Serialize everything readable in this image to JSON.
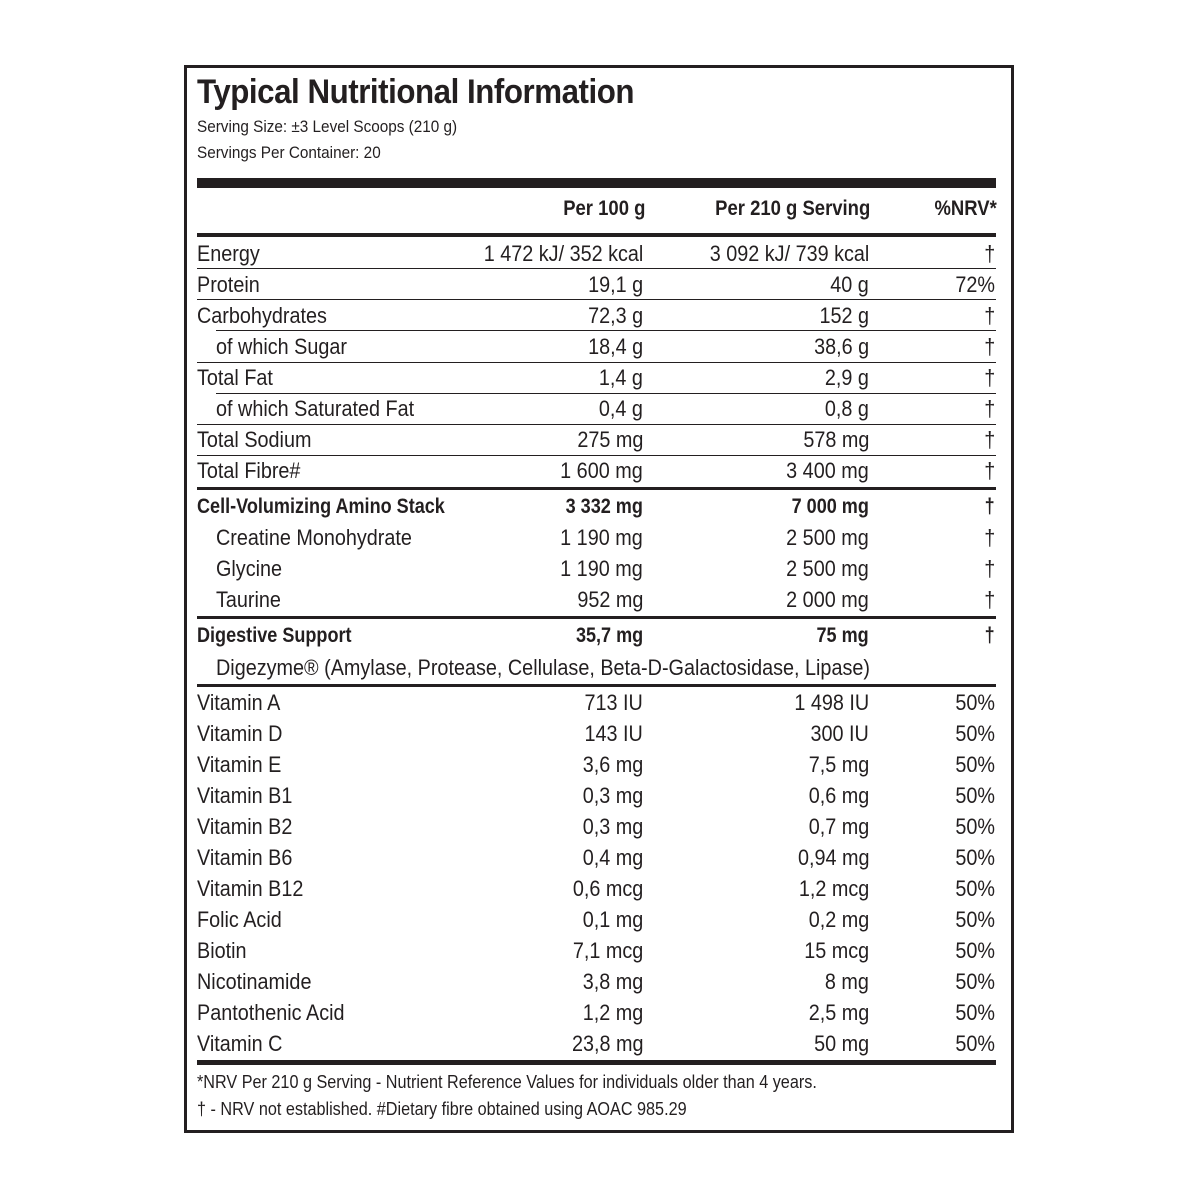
{
  "title": "Typical Nutritional Information",
  "serving_size": "Serving Size: ±3 Level Scoops (210 g)",
  "servings_per_container": "Servings Per Container: 20",
  "columns": {
    "per100": "Per 100 g",
    "serving": "Per 210 g Serving",
    "nrv": "%NRV*"
  },
  "rows": [
    {
      "name": "Energy",
      "per100": "1 472 kJ/ 352 kcal",
      "serving": "3 092 kJ/ 739 kcal",
      "nrv": "†"
    },
    {
      "name": "Protein",
      "per100": "19,1 g",
      "serving": "40 g",
      "nrv": "72%"
    },
    {
      "name": "Carbohydrates",
      "per100": "72,3 g",
      "serving": "152 g",
      "nrv": "†"
    },
    {
      "name": "of which Sugar",
      "per100": "18,4 g",
      "serving": "38,6 g",
      "nrv": "†"
    },
    {
      "name": "Total Fat",
      "per100": "1,4 g",
      "serving": "2,9 g",
      "nrv": "†"
    },
    {
      "name": "of which Saturated Fat",
      "per100": "0,4 g",
      "serving": "0,8 g",
      "nrv": "†"
    },
    {
      "name": "Total Sodium",
      "per100": "275 mg",
      "serving": "578 mg",
      "nrv": "†"
    },
    {
      "name": "Total Fibre#",
      "per100": "1 600 mg",
      "serving": "3 400 mg",
      "nrv": "†"
    },
    {
      "name": "Cell-Volumizing Amino Stack",
      "per100": "3 332 mg",
      "serving": "7 000 mg",
      "nrv": "†"
    },
    {
      "name": "Creatine Monohydrate",
      "per100": "1 190 mg",
      "serving": "2 500 mg",
      "nrv": "†"
    },
    {
      "name": "Glycine",
      "per100": "1 190 mg",
      "serving": "2 500 mg",
      "nrv": "†"
    },
    {
      "name": "Taurine",
      "per100": "952 mg",
      "serving": "2 000 mg",
      "nrv": "†"
    },
    {
      "name": "Digestive Support",
      "per100": "35,7 mg",
      "serving": "75 mg",
      "nrv": "†"
    },
    {
      "name": "Vitamin A",
      "per100": "713 IU",
      "serving": "1 498 IU",
      "nrv": "50%"
    },
    {
      "name": "Vitamin D",
      "per100": "143 IU",
      "serving": "300 IU",
      "nrv": "50%"
    },
    {
      "name": "Vitamin E",
      "per100": "3,6 mg",
      "serving": "7,5 mg",
      "nrv": "50%"
    },
    {
      "name": "Vitamin B1",
      "per100": "0,3 mg",
      "serving": "0,6 mg",
      "nrv": "50%"
    },
    {
      "name": "Vitamin B2",
      "per100": "0,3 mg",
      "serving": "0,7 mg",
      "nrv": "50%"
    },
    {
      "name": "Vitamin B6",
      "per100": "0,4 mg",
      "serving": "0,94 mg",
      "nrv": "50%"
    },
    {
      "name": "Vitamin B12",
      "per100": "0,6 mcg",
      "serving": "1,2 mcg",
      "nrv": "50%"
    },
    {
      "name": "Folic Acid",
      "per100": "0,1 mg",
      "serving": "0,2 mg",
      "nrv": "50%"
    },
    {
      "name": "Biotin",
      "per100": "7,1 mcg",
      "serving": "15 mcg",
      "nrv": "50%"
    },
    {
      "name": "Nicotinamide",
      "per100": "3,8 mg",
      "serving": "8 mg",
      "nrv": "50%"
    },
    {
      "name": "Pantothenic Acid",
      "per100": "1,2 mg",
      "serving": "2,5 mg",
      "nrv": "50%"
    },
    {
      "name": "Vitamin C",
      "per100": "23,8 mg",
      "serving": "50 mg",
      "nrv": "50%"
    }
  ],
  "digezyme_note": "Digezyme® (Amylase, Protease, Cellulase, Beta-D-Galactosidase, Lipase)",
  "footnote_1": "*NRV Per 210 g Serving - Nutrient Reference Values for individuals older than 4 years.",
  "footnote_2": "† - NRV not established. #Dietary fibre obtained using AOAC 985.29"
}
